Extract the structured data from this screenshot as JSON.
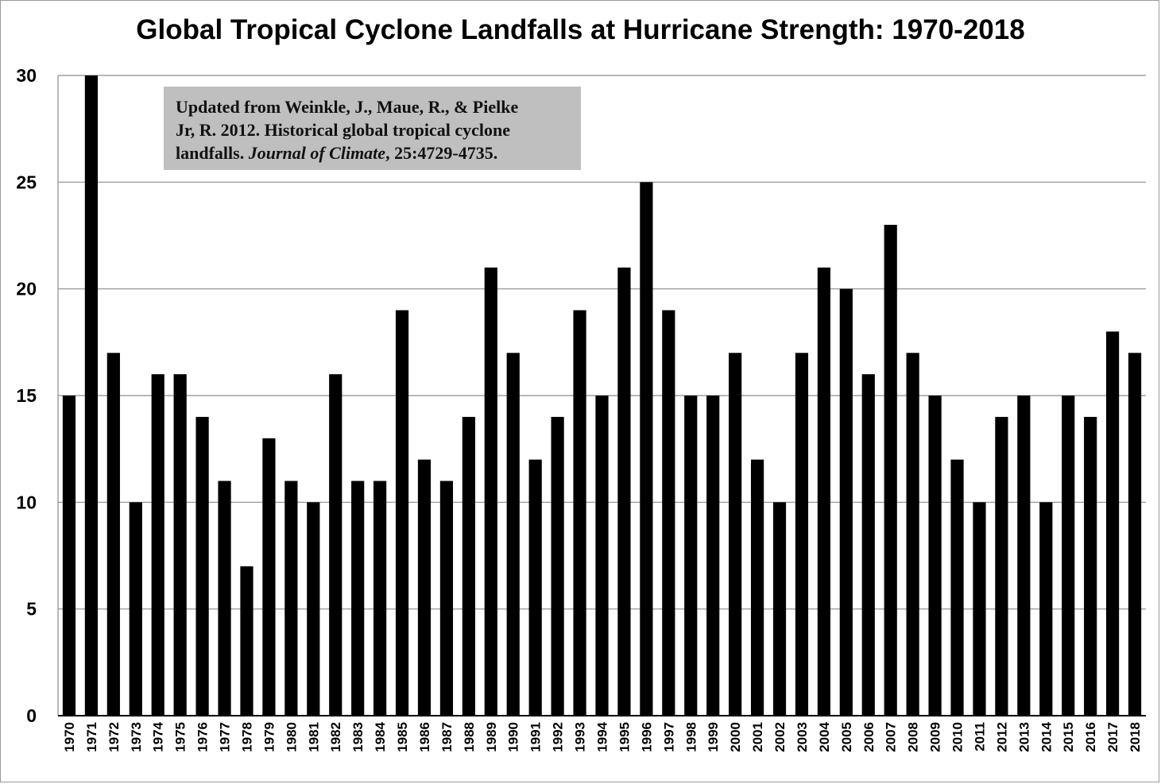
{
  "chart_data": {
    "type": "bar",
    "title": "Global Tropical Cyclone Landfalls at Hurricane Strength: 1970-2018",
    "xlabel": "",
    "ylabel": "",
    "ylim": [
      0,
      30
    ],
    "yticks": [
      "0",
      "5",
      "10",
      "15",
      "20",
      "25",
      "30"
    ],
    "grid": true,
    "bar_color": "#000000",
    "categories": [
      "1970",
      "1971",
      "1972",
      "1973",
      "1974",
      "1975",
      "1976",
      "1977",
      "1978",
      "1979",
      "1980",
      "1981",
      "1982",
      "1983",
      "1984",
      "1985",
      "1986",
      "1987",
      "1988",
      "1989",
      "1990",
      "1991",
      "1992",
      "1993",
      "1994",
      "1995",
      "1996",
      "1997",
      "1998",
      "1999",
      "2000",
      "2001",
      "2002",
      "2003",
      "2004",
      "2005",
      "2006",
      "2007",
      "2008",
      "2009",
      "2010",
      "2011",
      "2012",
      "2013",
      "2014",
      "2015",
      "2016",
      "2017",
      "2018"
    ],
    "values": [
      15,
      30,
      17,
      10,
      16,
      16,
      14,
      11,
      7,
      13,
      11,
      10,
      16,
      11,
      11,
      19,
      12,
      11,
      14,
      21,
      17,
      12,
      14,
      19,
      15,
      21,
      25,
      19,
      15,
      15,
      17,
      12,
      10,
      17,
      21,
      20,
      16,
      23,
      17,
      15,
      12,
      10,
      14,
      15,
      10,
      15,
      14,
      18,
      17
    ],
    "annotation": {
      "line1": "Updated from Weinkle, J., Maue, R., & Pielke",
      "line2": "Jr, R. 2012. Historical global tropical cyclone",
      "line3_prefix": "landfalls. ",
      "line3_journal": "Journal of Climate",
      "line3_suffix": ", 25:4729-4735."
    }
  }
}
